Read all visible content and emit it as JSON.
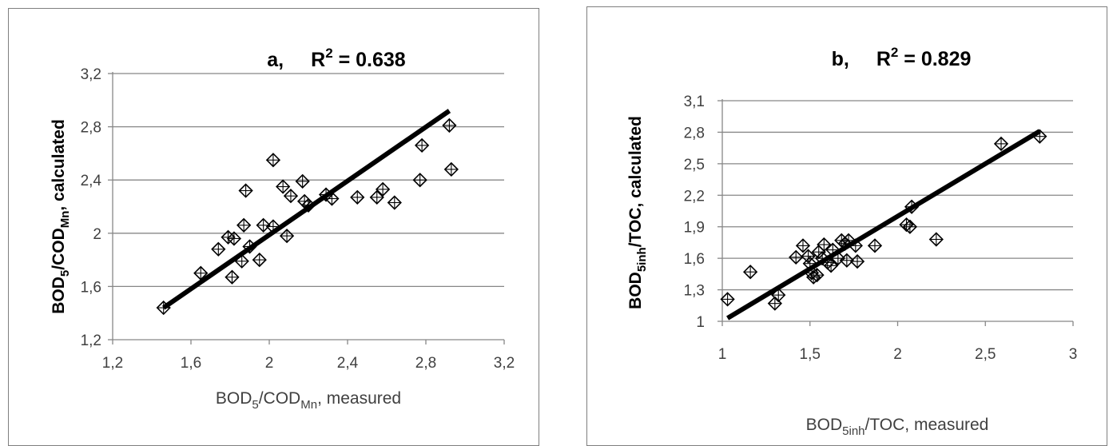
{
  "chart_data": [
    {
      "type": "scatter",
      "title_prefix": "a,",
      "title_r2_base": "R",
      "title_r2_sup": "2",
      "title_r2_value": " = 0.638",
      "xlabel_parts": [
        {
          "text": "BOD",
          "style": "normal"
        },
        {
          "text": "5",
          "style": "sub"
        },
        {
          "text": "/COD",
          "style": "normal"
        },
        {
          "text": "Mn",
          "style": "sub"
        },
        {
          "text": ", measured",
          "style": "normal"
        }
      ],
      "ylabel_parts": [
        {
          "text": "BOD",
          "style": "normal"
        },
        {
          "text": "5",
          "style": "sub"
        },
        {
          "text": "/COD",
          "style": "normal"
        },
        {
          "text": "Mn",
          "style": "sub"
        },
        {
          "text": ", calculated",
          "style": "normal"
        }
      ],
      "xlim": [
        1.2,
        3.2
      ],
      "ylim": [
        1.2,
        3.2
      ],
      "xticks": [
        1.2,
        1.6,
        2.0,
        2.4,
        2.8,
        3.2
      ],
      "xtick_labels": [
        "1,2",
        "1,6",
        "2",
        "2,4",
        "2,8",
        "3,2"
      ],
      "yticks": [
        1.2,
        1.6,
        2.0,
        2.4,
        2.8,
        3.2
      ],
      "ytick_labels": [
        "1,2",
        "1,6",
        "2",
        "2,4",
        "2,8",
        "3,2"
      ],
      "grid": "horizontal",
      "trendline": {
        "x": [
          1.46,
          2.92
        ],
        "y": [
          1.44,
          2.92
        ]
      },
      "points": [
        {
          "x": 1.46,
          "y": 1.44
        },
        {
          "x": 1.65,
          "y": 1.7
        },
        {
          "x": 1.74,
          "y": 1.88
        },
        {
          "x": 1.79,
          "y": 1.97
        },
        {
          "x": 1.81,
          "y": 1.67
        },
        {
          "x": 1.82,
          "y": 1.96
        },
        {
          "x": 1.86,
          "y": 1.79
        },
        {
          "x": 1.87,
          "y": 2.06
        },
        {
          "x": 1.88,
          "y": 2.32
        },
        {
          "x": 1.9,
          "y": 1.9
        },
        {
          "x": 1.95,
          "y": 1.8
        },
        {
          "x": 1.97,
          "y": 2.06
        },
        {
          "x": 2.02,
          "y": 2.55
        },
        {
          "x": 2.02,
          "y": 2.05
        },
        {
          "x": 2.07,
          "y": 2.35
        },
        {
          "x": 2.09,
          "y": 1.98
        },
        {
          "x": 2.11,
          "y": 2.28
        },
        {
          "x": 2.17,
          "y": 2.39
        },
        {
          "x": 2.18,
          "y": 2.24
        },
        {
          "x": 2.2,
          "y": 2.21
        },
        {
          "x": 2.29,
          "y": 2.29
        },
        {
          "x": 2.32,
          "y": 2.26
        },
        {
          "x": 2.45,
          "y": 2.27
        },
        {
          "x": 2.55,
          "y": 2.27
        },
        {
          "x": 2.58,
          "y": 2.33
        },
        {
          "x": 2.64,
          "y": 2.23
        },
        {
          "x": 2.77,
          "y": 2.4
        },
        {
          "x": 2.78,
          "y": 2.66
        },
        {
          "x": 2.92,
          "y": 2.81
        },
        {
          "x": 2.93,
          "y": 2.48
        }
      ]
    },
    {
      "type": "scatter",
      "title_prefix": "b,",
      "title_r2_base": "R",
      "title_r2_sup": "2",
      "title_r2_value": " = 0.829",
      "xlabel_parts": [
        {
          "text": "BOD",
          "style": "normal"
        },
        {
          "text": "5inh",
          "style": "sub"
        },
        {
          "text": "/TOC, measured",
          "style": "normal"
        }
      ],
      "ylabel_parts": [
        {
          "text": "BOD",
          "style": "normal"
        },
        {
          "text": "5inh",
          "style": "sub"
        },
        {
          "text": "/TOC, calculated",
          "style": "normal"
        }
      ],
      "xlim": [
        1,
        3
      ],
      "ylim": [
        1,
        3.1
      ],
      "xticks": [
        1,
        1.5,
        2,
        2.5,
        3
      ],
      "xtick_labels": [
        "1",
        "1,5",
        "2",
        "2,5",
        "3"
      ],
      "yticks": [
        1,
        1.3,
        1.6,
        1.9,
        2.2,
        2.5,
        2.8,
        3.1
      ],
      "ytick_labels": [
        "1",
        "1,3",
        "1,6",
        "1,9",
        "2,2",
        "2,5",
        "2,8",
        "3,1"
      ],
      "grid": "horizontal",
      "trendline": {
        "x": [
          1.03,
          2.81
        ],
        "y": [
          1.03,
          2.81
        ]
      },
      "points": [
        {
          "x": 1.03,
          "y": 1.21
        },
        {
          "x": 1.16,
          "y": 1.47
        },
        {
          "x": 1.3,
          "y": 1.17
        },
        {
          "x": 1.32,
          "y": 1.25
        },
        {
          "x": 1.42,
          "y": 1.61
        },
        {
          "x": 1.46,
          "y": 1.72
        },
        {
          "x": 1.49,
          "y": 1.62
        },
        {
          "x": 1.5,
          "y": 1.55
        },
        {
          "x": 1.51,
          "y": 1.46
        },
        {
          "x": 1.52,
          "y": 1.42
        },
        {
          "x": 1.54,
          "y": 1.44
        },
        {
          "x": 1.55,
          "y": 1.66
        },
        {
          "x": 1.57,
          "y": 1.6
        },
        {
          "x": 1.58,
          "y": 1.73
        },
        {
          "x": 1.6,
          "y": 1.56
        },
        {
          "x": 1.62,
          "y": 1.53
        },
        {
          "x": 1.63,
          "y": 1.68
        },
        {
          "x": 1.66,
          "y": 1.6
        },
        {
          "x": 1.68,
          "y": 1.77
        },
        {
          "x": 1.7,
          "y": 1.74
        },
        {
          "x": 1.71,
          "y": 1.58
        },
        {
          "x": 1.72,
          "y": 1.77
        },
        {
          "x": 1.76,
          "y": 1.72
        },
        {
          "x": 1.77,
          "y": 1.57
        },
        {
          "x": 1.87,
          "y": 1.72
        },
        {
          "x": 2.05,
          "y": 1.92
        },
        {
          "x": 2.07,
          "y": 1.9
        },
        {
          "x": 2.08,
          "y": 2.09
        },
        {
          "x": 2.22,
          "y": 1.78
        },
        {
          "x": 2.59,
          "y": 2.69
        },
        {
          "x": 2.81,
          "y": 2.76
        }
      ]
    }
  ]
}
